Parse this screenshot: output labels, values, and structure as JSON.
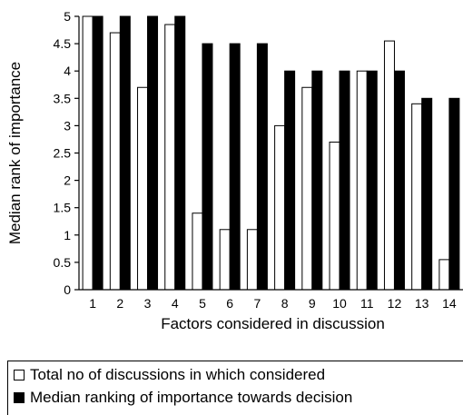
{
  "chart_data": {
    "type": "bar",
    "xlabel": "Factors considered in discussion",
    "ylabel": "Median rank of importance",
    "ylim": [
      0,
      5
    ],
    "yticks": [
      0,
      0.5,
      1,
      1.5,
      2,
      2.5,
      3,
      3.5,
      4,
      4.5,
      5
    ],
    "categories": [
      "1",
      "2",
      "3",
      "4",
      "5",
      "6",
      "7",
      "8",
      "9",
      "10",
      "11",
      "12",
      "13",
      "14"
    ],
    "series": [
      {
        "name": "Total no of discussions in which considered",
        "color": "#ffffff",
        "values": [
          5,
          4.7,
          3.7,
          4.85,
          1.4,
          1.1,
          1.1,
          3.0,
          3.7,
          2.7,
          4.0,
          4.55,
          3.4,
          0.55
        ]
      },
      {
        "name": "Median ranking of importance towards decision",
        "color": "#000000",
        "values": [
          5,
          5,
          5,
          5,
          4.5,
          4.5,
          4.5,
          4.0,
          4.0,
          4.0,
          4.0,
          4.0,
          3.5,
          3.5
        ]
      }
    ],
    "legend_position": "bottom-left",
    "grid": false
  }
}
